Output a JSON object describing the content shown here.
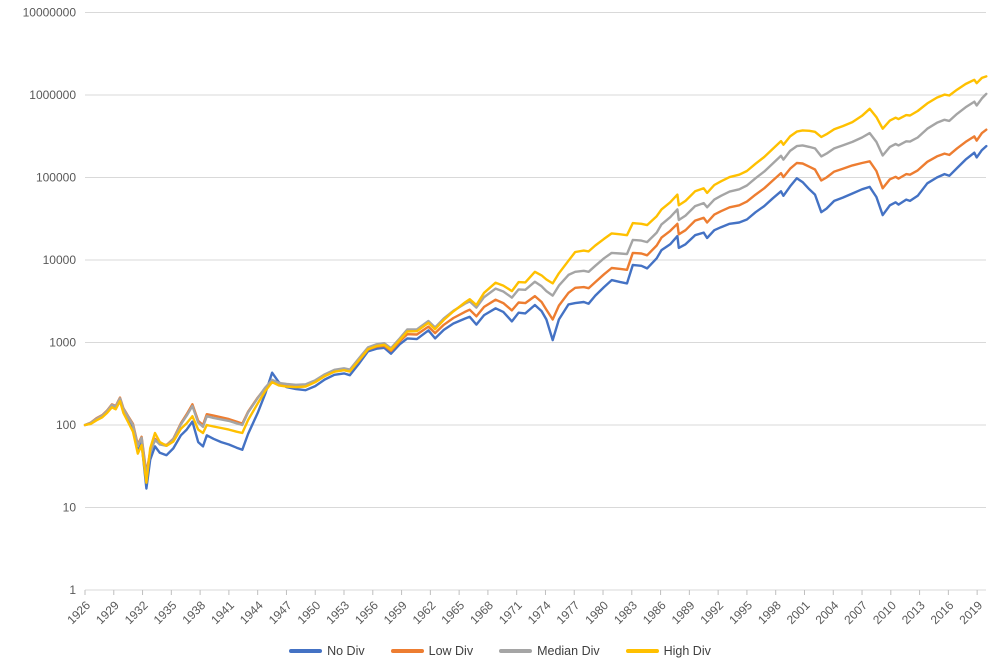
{
  "chart_data": {
    "type": "line",
    "title": "",
    "x_axis": {
      "label": "",
      "tick_years": [
        1926,
        1929,
        1932,
        1935,
        1938,
        1941,
        1944,
        1947,
        1950,
        1953,
        1956,
        1959,
        1962,
        1965,
        1968,
        1971,
        1974,
        1977,
        1980,
        1983,
        1986,
        1989,
        1992,
        1995,
        1998,
        2001,
        2004,
        2007,
        2010,
        2013,
        2016,
        2019
      ]
    },
    "y_axis": {
      "label": "",
      "scale": "log",
      "ticks": [
        1,
        10,
        100,
        1000,
        10000,
        100000,
        1000000,
        10000000
      ],
      "tick_labels": [
        "1",
        "10",
        "100",
        "1000",
        "10000",
        "100000",
        "1000000",
        "10000000"
      ]
    },
    "series": [
      {
        "name": "No Div",
        "color": "#4472C4"
      },
      {
        "name": "Low Div",
        "color": "#ED7D31"
      },
      {
        "name": "Median Div",
        "color": "#A5A5A5"
      },
      {
        "name": "High Div",
        "color": "#FFC000"
      }
    ],
    "rows_format": [
      "year",
      "No Div",
      "Low Div",
      "Median Div",
      "High Div"
    ],
    "rows": [
      [
        1926,
        100,
        100,
        100,
        100
      ],
      [
        1926.6,
        104,
        107,
        106,
        103
      ],
      [
        1927.2,
        116,
        121,
        119,
        114
      ],
      [
        1927.8,
        126,
        132,
        130,
        124
      ],
      [
        1928.3,
        142,
        150,
        148,
        140
      ],
      [
        1928.8,
        168,
        178,
        175,
        164
      ],
      [
        1929.2,
        158,
        170,
        167,
        155
      ],
      [
        1929.65,
        200,
        215,
        210,
        195
      ],
      [
        1930,
        145,
        160,
        157,
        140
      ],
      [
        1930.5,
        112,
        128,
        125,
        108
      ],
      [
        1931,
        88,
        103,
        100,
        83
      ],
      [
        1931.5,
        48,
        58,
        56,
        45
      ],
      [
        1931.9,
        60,
        72,
        70,
        57
      ],
      [
        1932.4,
        17,
        26,
        24,
        20
      ],
      [
        1932.8,
        38,
        48,
        46,
        52
      ],
      [
        1933.3,
        55,
        68,
        66,
        80
      ],
      [
        1933.8,
        46,
        60,
        58,
        62
      ],
      [
        1934.5,
        43,
        57,
        56,
        56
      ],
      [
        1935.2,
        52,
        68,
        67,
        63
      ],
      [
        1936,
        75,
        105,
        102,
        90
      ],
      [
        1936.6,
        88,
        135,
        130,
        105
      ],
      [
        1937.2,
        110,
        178,
        170,
        128
      ],
      [
        1937.8,
        62,
        112,
        107,
        88
      ],
      [
        1938.3,
        55,
        100,
        95,
        80
      ],
      [
        1938.7,
        75,
        135,
        128,
        100
      ],
      [
        1939.4,
        68,
        130,
        122,
        96
      ],
      [
        1940.2,
        62,
        124,
        117,
        92
      ],
      [
        1941,
        58,
        118,
        112,
        88
      ],
      [
        1941.8,
        53,
        110,
        105,
        83
      ],
      [
        1942.4,
        50,
        104,
        100,
        80
      ],
      [
        1943,
        78,
        145,
        142,
        115
      ],
      [
        1944,
        140,
        215,
        212,
        182
      ],
      [
        1944.8,
        240,
        280,
        285,
        258
      ],
      [
        1945.5,
        430,
        345,
        352,
        330
      ],
      [
        1946.2,
        330,
        318,
        324,
        302
      ],
      [
        1947,
        288,
        306,
        314,
        292
      ],
      [
        1948,
        272,
        299,
        307,
        287
      ],
      [
        1949,
        264,
        301,
        311,
        293
      ],
      [
        1950,
        296,
        336,
        348,
        330
      ],
      [
        1951,
        356,
        396,
        412,
        392
      ],
      [
        1952,
        406,
        446,
        467,
        443
      ],
      [
        1953,
        422,
        463,
        487,
        461
      ],
      [
        1953.6,
        401,
        446,
        470,
        445
      ],
      [
        1954.6,
        562,
        612,
        652,
        618
      ],
      [
        1955.5,
        782,
        822,
        872,
        828
      ],
      [
        1956.4,
        842,
        892,
        952,
        908
      ],
      [
        1957.2,
        862,
        912,
        982,
        938
      ],
      [
        1957.9,
        732,
        792,
        852,
        818
      ],
      [
        1958.8,
        952,
        1030,
        1120,
        1070
      ],
      [
        1959.6,
        1120,
        1260,
        1440,
        1360
      ],
      [
        1960.6,
        1100,
        1250,
        1440,
        1370
      ],
      [
        1961.8,
        1400,
        1560,
        1820,
        1730
      ],
      [
        1962.5,
        1120,
        1300,
        1520,
        1450
      ],
      [
        1963.4,
        1420,
        1640,
        1960,
        1880
      ],
      [
        1964.4,
        1700,
        1980,
        2420,
        2380
      ],
      [
        1965.6,
        1950,
        2350,
        2950,
        3050
      ],
      [
        1966.1,
        2050,
        2500,
        3150,
        3350
      ],
      [
        1966.8,
        1650,
        2080,
        2650,
        2850
      ],
      [
        1967.6,
        2150,
        2700,
        3550,
        4000
      ],
      [
        1968.8,
        2600,
        3300,
        4500,
        5300
      ],
      [
        1969.6,
        2350,
        3000,
        4150,
        4900
      ],
      [
        1970.5,
        1800,
        2450,
        3500,
        4200
      ],
      [
        1971.2,
        2300,
        3050,
        4400,
        5400
      ],
      [
        1971.9,
        2250,
        3000,
        4350,
        5350
      ],
      [
        1972.9,
        2850,
        3650,
        5450,
        7200
      ],
      [
        1973.6,
        2400,
        3100,
        4800,
        6500
      ],
      [
        1974.1,
        1900,
        2500,
        4200,
        5800
      ],
      [
        1974.75,
        1070,
        1900,
        3700,
        5200
      ],
      [
        1975.4,
        1900,
        2800,
        4900,
        6900
      ],
      [
        1976.4,
        2900,
        4000,
        6600,
        9800
      ],
      [
        1977.1,
        3000,
        4600,
        7200,
        12500
      ],
      [
        1978,
        3100,
        4700,
        7400,
        13000
      ],
      [
        1978.5,
        2950,
        4550,
        7200,
        12700
      ],
      [
        1979.2,
        3700,
        5400,
        8500,
        15000
      ],
      [
        1980.1,
        4700,
        6700,
        10500,
        18000
      ],
      [
        1980.9,
        5700,
        8000,
        12200,
        21000
      ],
      [
        1981.8,
        5400,
        7800,
        12000,
        20500
      ],
      [
        1982.5,
        5200,
        7600,
        11800,
        20000
      ],
      [
        1983.1,
        8700,
        12200,
        17500,
        28000
      ],
      [
        1984,
        8500,
        12000,
        17200,
        27500
      ],
      [
        1984.6,
        7900,
        11400,
        16500,
        26500
      ],
      [
        1985.6,
        10500,
        15000,
        21500,
        34000
      ],
      [
        1986.1,
        13200,
        18700,
        27000,
        41000
      ],
      [
        1987,
        15500,
        22500,
        33000,
        50000
      ],
      [
        1987.75,
        19500,
        27500,
        41000,
        62000
      ],
      [
        1987.9,
        14000,
        20500,
        30500,
        46000
      ],
      [
        1988.6,
        15500,
        23000,
        34500,
        52000
      ],
      [
        1989.6,
        20000,
        30000,
        45000,
        68000
      ],
      [
        1990.5,
        21500,
        32500,
        49000,
        74000
      ],
      [
        1990.85,
        18500,
        28500,
        43500,
        65000
      ],
      [
        1991.6,
        23000,
        35500,
        54000,
        81000
      ],
      [
        1992.3,
        25000,
        39000,
        60000,
        90000
      ],
      [
        1993.2,
        27500,
        43500,
        67500,
        101000
      ],
      [
        1994.2,
        28500,
        46000,
        72000,
        108000
      ],
      [
        1995,
        31000,
        51000,
        80000,
        120000
      ],
      [
        1995.9,
        38000,
        62000,
        98000,
        147000
      ],
      [
        1996.8,
        45000,
        74000,
        118000,
        177000
      ],
      [
        1997.7,
        56000,
        92000,
        148000,
        222000
      ],
      [
        1998.55,
        68000,
        113000,
        183000,
        276000
      ],
      [
        1998.8,
        60000,
        101000,
        165000,
        250000
      ],
      [
        1999.5,
        78000,
        128000,
        210000,
        315000
      ],
      [
        2000.2,
        98000,
        150000,
        240000,
        360000
      ],
      [
        2000.8,
        88000,
        148000,
        245000,
        372000
      ],
      [
        2001.5,
        72000,
        135000,
        235000,
        368000
      ],
      [
        2002.1,
        62000,
        125000,
        225000,
        358000
      ],
      [
        2002.75,
        38000,
        92000,
        180000,
        310000
      ],
      [
        2003.3,
        42000,
        100000,
        195000,
        335000
      ],
      [
        2004.1,
        52000,
        118000,
        225000,
        385000
      ],
      [
        2005,
        57000,
        128000,
        245000,
        420000
      ],
      [
        2006,
        64000,
        140000,
        270000,
        470000
      ],
      [
        2007,
        72000,
        150000,
        305000,
        560000
      ],
      [
        2007.8,
        77000,
        157000,
        345000,
        680000
      ],
      [
        2008.5,
        58000,
        120000,
        270000,
        540000
      ],
      [
        2009.15,
        35000,
        74000,
        185000,
        390000
      ],
      [
        2009.9,
        46000,
        95000,
        235000,
        490000
      ],
      [
        2010.5,
        50000,
        102000,
        255000,
        530000
      ],
      [
        2010.8,
        47000,
        97000,
        245000,
        510000
      ],
      [
        2011.6,
        54000,
        110000,
        275000,
        570000
      ],
      [
        2012,
        52000,
        108000,
        272000,
        565000
      ],
      [
        2012.8,
        60000,
        122000,
        305000,
        640000
      ],
      [
        2013.8,
        85000,
        155000,
        390000,
        790000
      ],
      [
        2014.8,
        100000,
        180000,
        460000,
        930000
      ],
      [
        2015.6,
        110000,
        195000,
        500000,
        1010000
      ],
      [
        2016.1,
        105000,
        188000,
        485000,
        985000
      ],
      [
        2016.9,
        130000,
        225000,
        590000,
        1160000
      ],
      [
        2017.8,
        165000,
        270000,
        710000,
        1360000
      ],
      [
        2018.7,
        200000,
        315000,
        830000,
        1530000
      ],
      [
        2018.95,
        175000,
        280000,
        745000,
        1390000
      ],
      [
        2019.5,
        215000,
        345000,
        910000,
        1610000
      ],
      [
        2019.95,
        240000,
        380000,
        1030000,
        1680000
      ]
    ],
    "legend_position": "bottom",
    "grid": "horizontal-only"
  },
  "legend": {
    "items": [
      {
        "label": "No Div"
      },
      {
        "label": "Low Div"
      },
      {
        "label": "Median Div"
      },
      {
        "label": "High Div"
      }
    ]
  }
}
